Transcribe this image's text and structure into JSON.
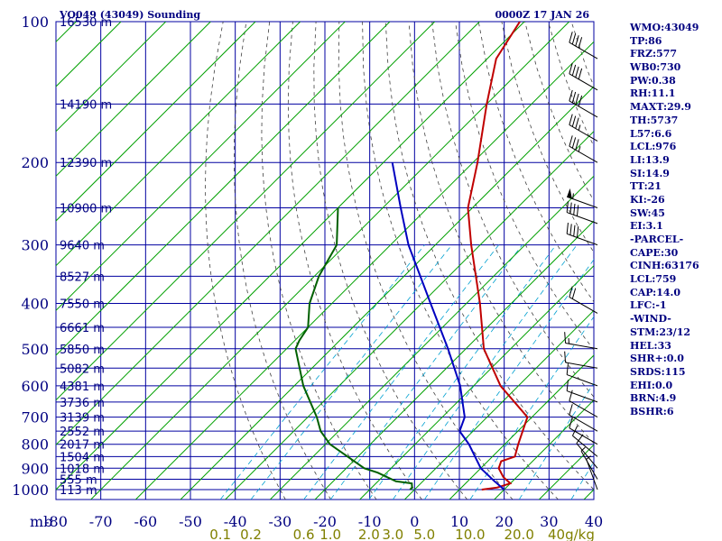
{
  "header": {
    "station": "VO049 (43049) Sounding",
    "time": "0000Z 17 JAN 26"
  },
  "indices": [
    "WMO:43049",
    "TP:86",
    "FRZ:577",
    "WB0:730",
    "PW:0.38",
    "RH:11.1",
    "MAXT:29.9",
    "TH:5737",
    "L57:6.6",
    "LCL:976",
    "LI:13.9",
    "SI:14.9",
    "TT:21",
    "KI:-26",
    "SW:45",
    "EI:3.1",
    "-PARCEL-",
    "CAPE:30",
    "CINH:63176",
    "LCL:759",
    "CAP:14.0",
    "LFC:-1",
    "-WIND-",
    "STM:23/12",
    "HEL:33",
    "SHR+:0.0",
    "SRDS:115",
    "EHI:0.0",
    "BRN:4.9",
    "BSHR:6"
  ],
  "chart_data": {
    "type": "line",
    "title": "VO049 (43049) Sounding",
    "xlabel": "",
    "ylabel": "mb",
    "xlim": [
      -80,
      40
    ],
    "ylim": [
      1000,
      100
    ],
    "y_scale": "log (pressure)",
    "x_tick_labels": [
      "-80",
      "-70",
      "-60",
      "-50",
      "-40",
      "-30",
      "-20",
      "-10",
      "0",
      "10",
      "20",
      "30",
      "40"
    ],
    "y_tick_labels": [
      "100",
      "200",
      "300",
      "400",
      "500",
      "600",
      "700",
      "800",
      "900",
      "1000"
    ],
    "y_ticks": [
      100,
      200,
      300,
      400,
      500,
      600,
      700,
      800,
      900,
      1000
    ],
    "height_labels": [
      {
        "p": 100,
        "text": "16530 m"
      },
      {
        "p": 150,
        "text": "14190 m"
      },
      {
        "p": 200,
        "text": "12390 m"
      },
      {
        "p": 250,
        "text": "10900 m"
      },
      {
        "p": 300,
        "text": "9640 m"
      },
      {
        "p": 350,
        "text": "8527 m"
      },
      {
        "p": 400,
        "text": "7550 m"
      },
      {
        "p": 450,
        "text": "6661 m"
      },
      {
        "p": 500,
        "text": "5850 m"
      },
      {
        "p": 550,
        "text": "5082 m"
      },
      {
        "p": 600,
        "text": "4381 m"
      },
      {
        "p": 650,
        "text": "3736 m"
      },
      {
        "p": 700,
        "text": "3139 m"
      },
      {
        "p": 750,
        "text": "2552 m"
      },
      {
        "p": 800,
        "text": "2017 m"
      },
      {
        "p": 850,
        "text": "1504 m"
      },
      {
        "p": 900,
        "text": "1018 m"
      },
      {
        "p": 950,
        "text": "555 m"
      },
      {
        "p": 1000,
        "text": "113 m"
      }
    ],
    "mixing_ratio_labels": [
      "0.1",
      "0.2",
      "0.6",
      "1.0",
      "2.0",
      "3.0",
      "5.0",
      "10.0",
      "20.0",
      "40g/kg"
    ],
    "mixing_ratio_values": [
      0.1,
      0.2,
      0.6,
      1.0,
      2.0,
      3.0,
      5.0,
      10.0,
      20.0,
      40.0
    ],
    "series": [
      {
        "kind": "temperature",
        "color": "#c00000",
        "points": [
          [
            1000,
            15
          ],
          [
            990,
            18
          ],
          [
            970,
            20
          ],
          [
            940,
            17
          ],
          [
            900,
            14
          ],
          [
            870,
            13
          ],
          [
            850,
            15
          ],
          [
            800,
            13
          ],
          [
            700,
            9
          ],
          [
            600,
            -4
          ],
          [
            500,
            -16
          ],
          [
            400,
            -27
          ],
          [
            300,
            -42
          ],
          [
            250,
            -51
          ],
          [
            200,
            -59
          ],
          [
            150,
            -70
          ],
          [
            120,
            -78
          ],
          [
            100,
            -81
          ]
        ]
      },
      {
        "kind": "dewpoint",
        "color": "#006000",
        "points": [
          [
            1000,
            -1
          ],
          [
            990,
            -1
          ],
          [
            970,
            -2
          ],
          [
            960,
            -6
          ],
          [
            920,
            -12
          ],
          [
            900,
            -16
          ],
          [
            800,
            -29
          ],
          [
            750,
            -34
          ],
          [
            700,
            -38
          ],
          [
            600,
            -48
          ],
          [
            500,
            -58
          ],
          [
            480,
            -59
          ],
          [
            450,
            -60
          ],
          [
            400,
            -65
          ],
          [
            350,
            -69
          ],
          [
            300,
            -72
          ],
          [
            250,
            -80
          ]
        ]
      },
      {
        "kind": "parcel",
        "color": "#0000c0",
        "points": [
          [
            1000,
            20
          ],
          [
            960,
            16
          ],
          [
            900,
            10
          ],
          [
            800,
            2
          ],
          [
            750,
            -3
          ],
          [
            700,
            -5
          ],
          [
            600,
            -13
          ],
          [
            500,
            -24
          ],
          [
            400,
            -38
          ],
          [
            300,
            -56
          ],
          [
            250,
            -66
          ],
          [
            200,
            -78
          ]
        ]
      }
    ],
    "wind_barbs": [
      {
        "p": 120,
        "dir": 300,
        "spd": 40
      },
      {
        "p": 140,
        "dir": 300,
        "spd": 40
      },
      {
        "p": 160,
        "dir": 300,
        "spd": 40
      },
      {
        "p": 180,
        "dir": 300,
        "spd": 35
      },
      {
        "p": 200,
        "dir": 300,
        "spd": 35
      },
      {
        "p": 250,
        "dir": 290,
        "spd": 55
      },
      {
        "p": 270,
        "dir": 290,
        "spd": 40
      },
      {
        "p": 300,
        "dir": 290,
        "spd": 40
      },
      {
        "p": 420,
        "dir": 300,
        "spd": 20
      },
      {
        "p": 500,
        "dir": 280,
        "spd": 15
      },
      {
        "p": 550,
        "dir": 280,
        "spd": 10
      },
      {
        "p": 600,
        "dir": 290,
        "spd": 10
      },
      {
        "p": 650,
        "dir": 290,
        "spd": 10
      },
      {
        "p": 700,
        "dir": 300,
        "spd": 10
      },
      {
        "p": 750,
        "dir": 300,
        "spd": 10
      },
      {
        "p": 800,
        "dir": 300,
        "spd": 10
      },
      {
        "p": 850,
        "dir": 310,
        "spd": 10
      },
      {
        "p": 900,
        "dir": 320,
        "spd": 10
      },
      {
        "p": 950,
        "dir": 330,
        "spd": 5
      },
      {
        "p": 1000,
        "dir": 340,
        "spd": 5
      }
    ],
    "grid": true,
    "colors": {
      "grid": "#0000a0",
      "isotherm": "#00a000",
      "dry_adiabat": "#404040",
      "mixing_ratio": "#00a0d0",
      "axis_text": "#000080",
      "mixing_text": "#808000"
    }
  }
}
